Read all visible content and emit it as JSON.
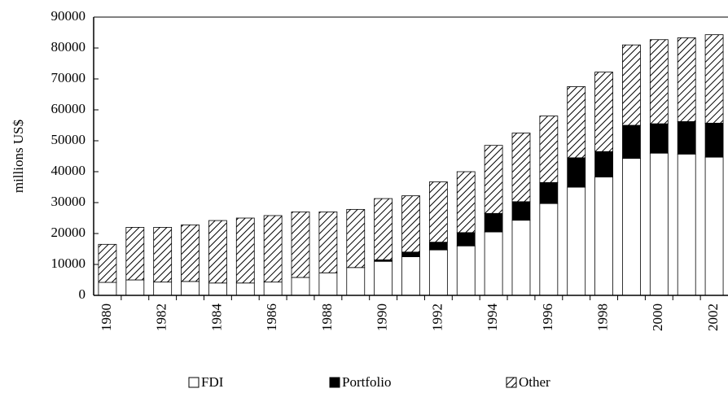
{
  "chart_data": {
    "type": "stacked_bar",
    "y_label": "millions US$",
    "categories": [
      "1980",
      null,
      "1982",
      null,
      "1984",
      null,
      "1986",
      null,
      "1988",
      null,
      "1990",
      null,
      "1992",
      null,
      "1994",
      null,
      "1996",
      null,
      "1998",
      null,
      "2000",
      null,
      "2002"
    ],
    "series": [
      {
        "name": "FDI",
        "color": "#ffffff",
        "values": [
          4200,
          5000,
          4300,
          4500,
          4000,
          4000,
          4300,
          5800,
          7300,
          9000,
          11000,
          12500,
          14700,
          16000,
          20500,
          24300,
          29700,
          35000,
          38300,
          44300,
          46000,
          45700,
          44700
        ]
      },
      {
        "name": "Portfolio",
        "color": "#000000",
        "values": [
          0,
          0,
          0,
          0,
          0,
          0,
          0,
          0,
          0,
          0,
          500,
          1500,
          2500,
          4300,
          6000,
          6000,
          6800,
          9500,
          8200,
          10700,
          9500,
          10500,
          11000
        ]
      },
      {
        "name": "Other",
        "color": "#000000",
        "hatch": true,
        "values": [
          12300,
          17000,
          17700,
          18300,
          20200,
          21000,
          21500,
          21200,
          19700,
          18800,
          19800,
          18200,
          19500,
          19700,
          22000,
          22200,
          21500,
          23000,
          25700,
          26000,
          27200,
          27100,
          28600
        ]
      }
    ],
    "ylim": [
      0,
      90000
    ],
    "yticks": [
      0,
      10000,
      20000,
      30000,
      40000,
      50000,
      60000,
      70000,
      80000,
      90000
    ],
    "legend": "bottom"
  }
}
